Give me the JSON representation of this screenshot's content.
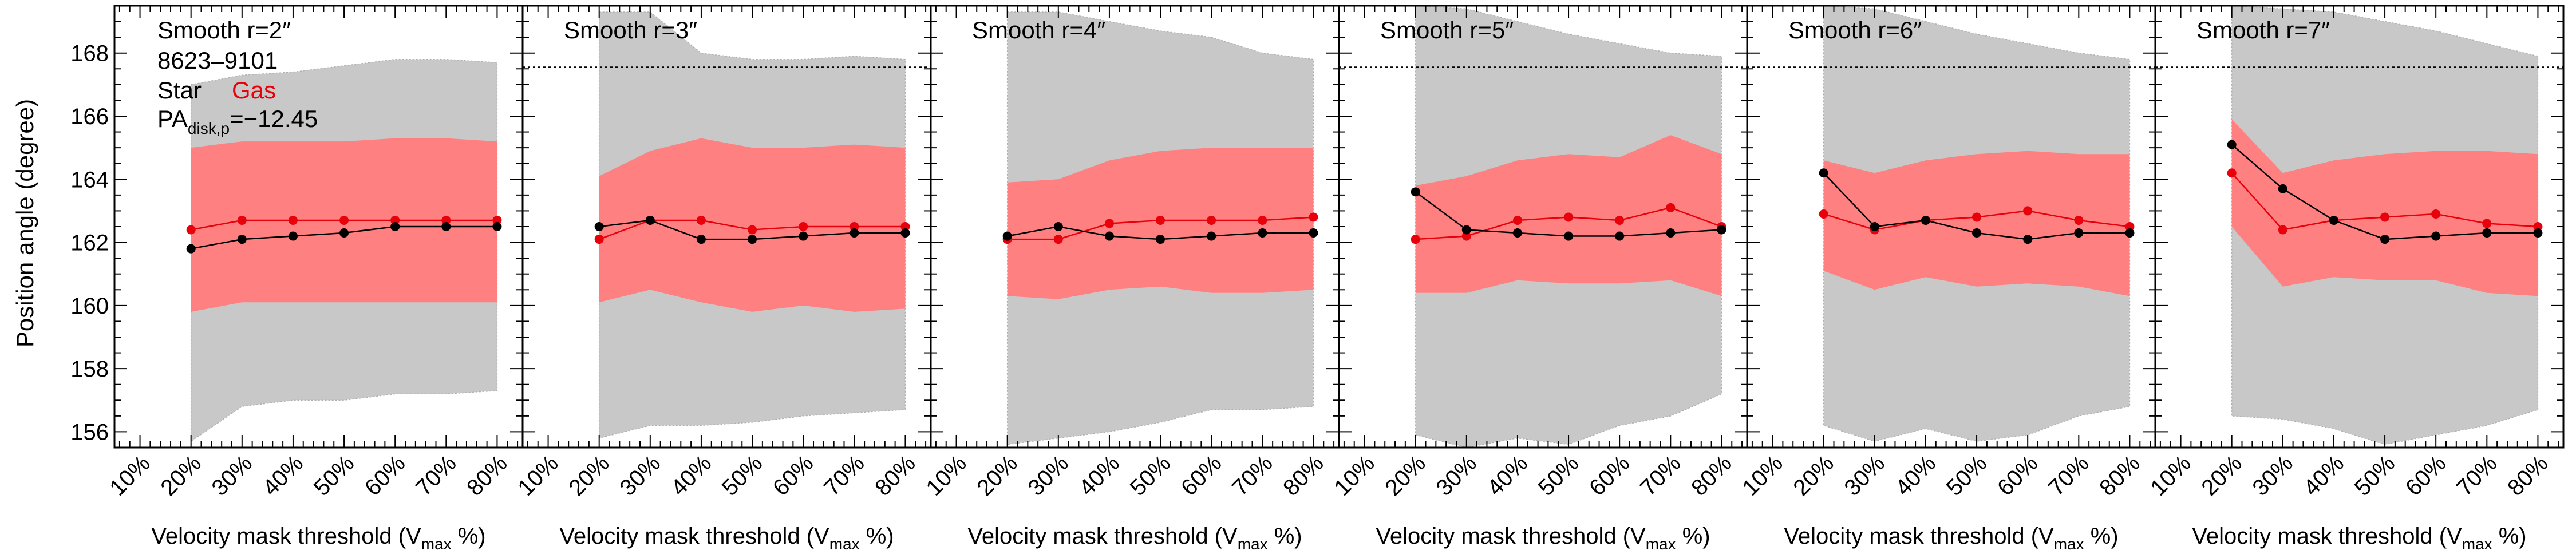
{
  "chart_data": {
    "type": "line",
    "object_id": "8623–9101",
    "legend": {
      "star": "Star",
      "gas": "Gas"
    },
    "pa_disk_label": {
      "prefix": "PA",
      "subscript": "disk,p",
      "value_text": "=−12.45"
    },
    "pa_disk": 167.55,
    "ylabel": "Position angle (degree)",
    "xlabel": {
      "main": "Velocity mask threshold (V",
      "sub": "max",
      "tail": " %)"
    },
    "ylim": [
      155.5,
      169.5
    ],
    "xlim": [
      5,
      85
    ],
    "yticks": [
      156,
      158,
      160,
      162,
      164,
      166,
      168
    ],
    "xticks": [
      10,
      20,
      30,
      40,
      50,
      60,
      70,
      80
    ],
    "xtick_labels": [
      "10%",
      "20%",
      "30%",
      "40%",
      "50%",
      "60%",
      "70%",
      "80%"
    ],
    "x": [
      20,
      30,
      40,
      50,
      60,
      70,
      80
    ],
    "colors": {
      "star": "#000000",
      "gas": "#e8000b",
      "gas_band": "#ff8080",
      "star_band": "#c8c8c8"
    },
    "panels": [
      {
        "title": "Smooth r=2″",
        "show_pa_line": false,
        "star": [
          161.8,
          162.1,
          162.2,
          162.3,
          162.5,
          162.5,
          162.5
        ],
        "gas": [
          162.4,
          162.7,
          162.7,
          162.7,
          162.7,
          162.7,
          162.7
        ],
        "star_band": {
          "low": [
            155.7,
            156.8,
            157.0,
            157.0,
            157.2,
            157.2,
            157.3
          ],
          "high": [
            167.0,
            167.3,
            167.4,
            167.6,
            167.8,
            167.8,
            167.7
          ]
        },
        "gas_band": {
          "low": [
            159.8,
            160.1,
            160.1,
            160.1,
            160.1,
            160.1,
            160.1
          ],
          "high": [
            165.0,
            165.2,
            165.2,
            165.2,
            165.3,
            165.3,
            165.2
          ]
        }
      },
      {
        "title": "Smooth r=3″",
        "show_pa_line": true,
        "star": [
          162.5,
          162.7,
          162.1,
          162.1,
          162.2,
          162.3,
          162.3
        ],
        "gas": [
          162.1,
          162.7,
          162.7,
          162.4,
          162.5,
          162.5,
          162.5
        ],
        "star_band": {
          "low": [
            155.8,
            156.2,
            156.2,
            156.3,
            156.5,
            156.6,
            156.7
          ],
          "high": [
            169.3,
            169.3,
            168.0,
            167.8,
            167.8,
            167.9,
            167.8
          ]
        },
        "gas_band": {
          "low": [
            160.1,
            160.5,
            160.1,
            159.8,
            160.0,
            159.8,
            159.9
          ],
          "high": [
            164.1,
            164.9,
            165.3,
            165.0,
            165.0,
            165.1,
            165.0
          ]
        }
      },
      {
        "title": "Smooth r=4″",
        "show_pa_line": false,
        "star": [
          162.2,
          162.5,
          162.2,
          162.1,
          162.2,
          162.3,
          162.3
        ],
        "gas": [
          162.1,
          162.1,
          162.6,
          162.7,
          162.7,
          162.7,
          162.8
        ],
        "star_band": {
          "low": [
            155.6,
            155.8,
            156.0,
            156.3,
            156.7,
            156.7,
            156.8
          ],
          "high": [
            169.3,
            169.3,
            169.0,
            168.7,
            168.5,
            168.0,
            167.8
          ]
        },
        "gas_band": {
          "low": [
            160.3,
            160.2,
            160.5,
            160.6,
            160.4,
            160.4,
            160.5
          ],
          "high": [
            163.9,
            164.0,
            164.6,
            164.9,
            165.0,
            165.0,
            165.0
          ]
        }
      },
      {
        "title": "Smooth r=5″",
        "show_pa_line": true,
        "star": [
          163.6,
          162.4,
          162.3,
          162.2,
          162.2,
          162.3,
          162.4
        ],
        "gas": [
          162.1,
          162.2,
          162.7,
          162.8,
          162.7,
          163.1,
          162.5
        ],
        "star_band": {
          "low": [
            155.9,
            155.5,
            155.8,
            155.6,
            156.2,
            156.5,
            157.2
          ],
          "high": [
            169.5,
            169.4,
            169.0,
            168.6,
            168.3,
            168.0,
            167.9
          ]
        },
        "gas_band": {
          "low": [
            160.4,
            160.4,
            160.8,
            160.7,
            160.7,
            160.8,
            160.3
          ],
          "high": [
            163.8,
            164.1,
            164.6,
            164.8,
            164.7,
            165.4,
            164.8
          ]
        }
      },
      {
        "title": "Smooth r=6″",
        "show_pa_line": true,
        "star": [
          164.2,
          162.5,
          162.7,
          162.3,
          162.1,
          162.3,
          162.3
        ],
        "gas": [
          162.9,
          162.4,
          162.7,
          162.8,
          163.0,
          162.7,
          162.5
        ],
        "star_band": {
          "low": [
            156.2,
            155.7,
            156.1,
            155.7,
            155.9,
            156.5,
            156.8
          ],
          "high": [
            169.5,
            169.4,
            169.0,
            168.6,
            168.3,
            168.0,
            167.8
          ]
        },
        "gas_band": {
          "low": [
            161.1,
            160.5,
            160.9,
            160.6,
            160.7,
            160.6,
            160.3
          ],
          "high": [
            164.6,
            164.2,
            164.6,
            164.8,
            164.9,
            164.8,
            164.8
          ]
        }
      },
      {
        "title": "Smooth r=7″",
        "show_pa_line": true,
        "star": [
          165.1,
          163.7,
          162.7,
          162.1,
          162.2,
          162.3,
          162.3
        ],
        "gas": [
          164.2,
          162.4,
          162.7,
          162.8,
          162.9,
          162.6,
          162.5
        ],
        "star_band": {
          "low": [
            156.5,
            156.4,
            156.1,
            155.6,
            155.9,
            156.2,
            156.7
          ],
          "high": [
            169.5,
            169.4,
            169.3,
            169.0,
            168.7,
            168.3,
            167.9
          ]
        },
        "gas_band": {
          "low": [
            162.5,
            160.6,
            160.9,
            160.8,
            160.8,
            160.4,
            160.3
          ],
          "high": [
            165.9,
            164.2,
            164.6,
            164.8,
            164.9,
            164.9,
            164.8
          ]
        }
      }
    ]
  }
}
